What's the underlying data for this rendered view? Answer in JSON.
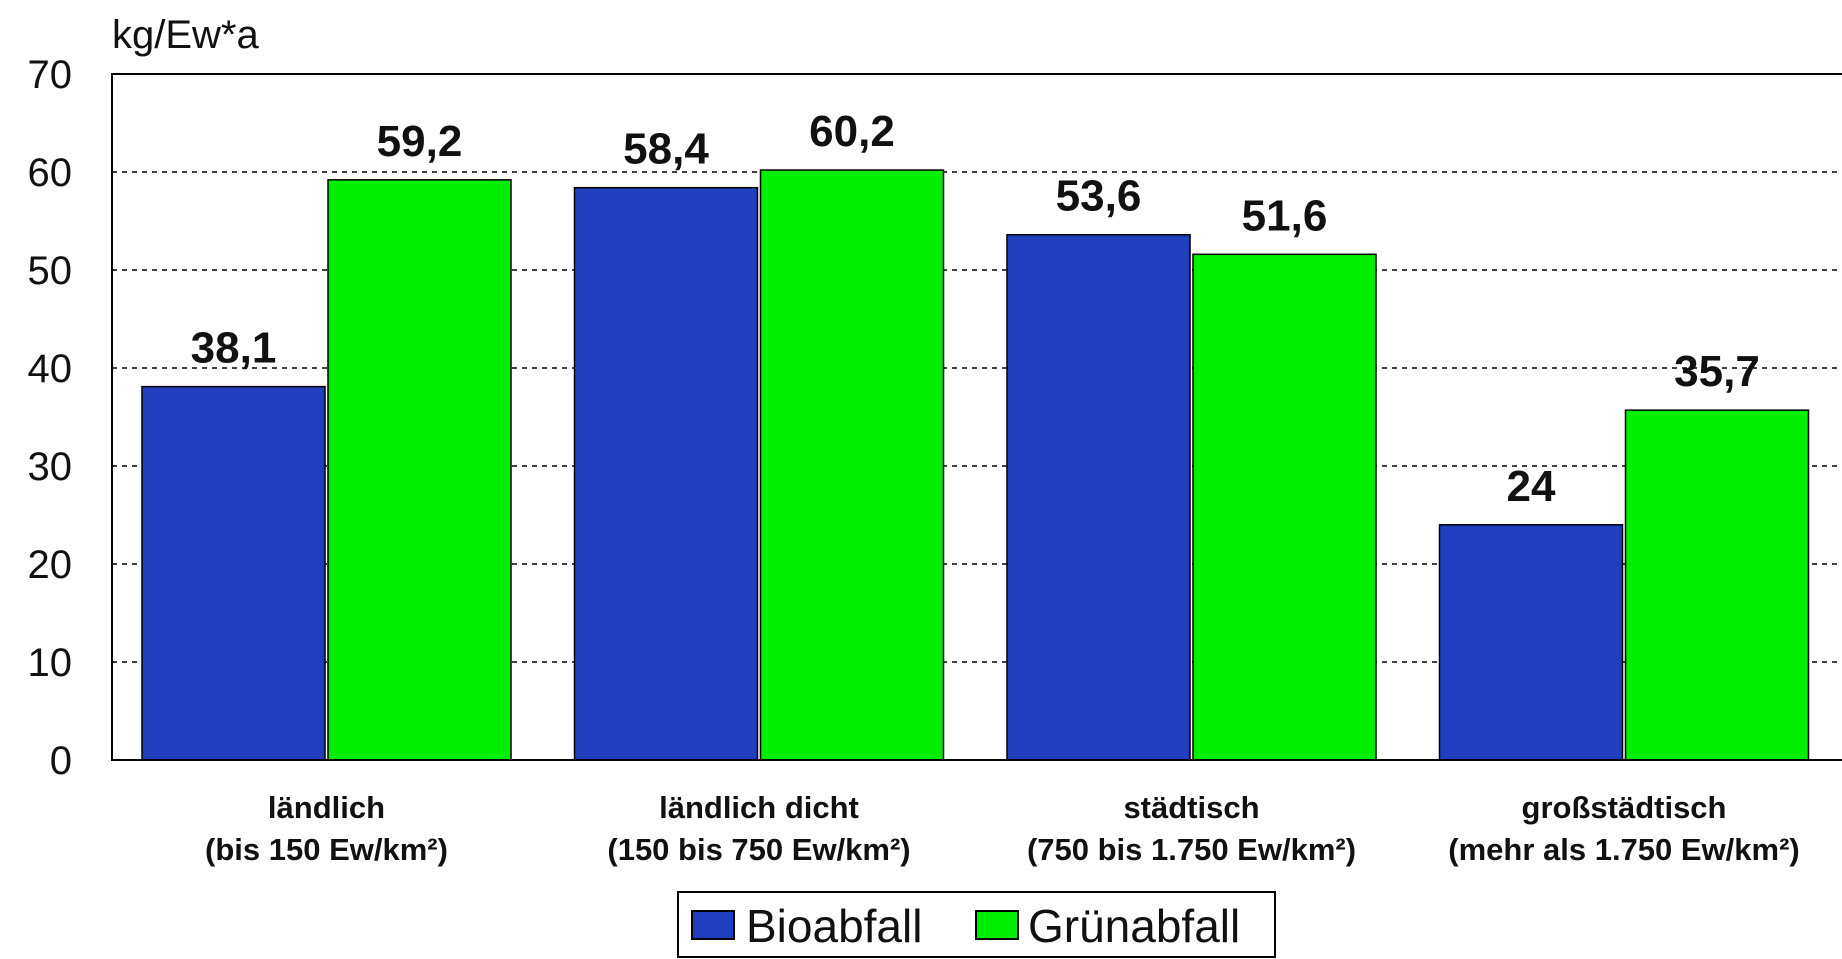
{
  "chart_data": {
    "type": "bar",
    "unit_label": "kg/Ew*a",
    "ylim": [
      0,
      70
    ],
    "yticks": [
      "0",
      "10",
      "20",
      "30",
      "40",
      "50",
      "60",
      "70"
    ],
    "grid": "horizontal dashed",
    "legend_position": "bottom-center",
    "categories": [
      [
        "ländlich",
        "(bis 150 Ew/km²)"
      ],
      [
        "ländlich dicht",
        "(150 bis 750 Ew/km²)"
      ],
      [
        "städtisch",
        "(750 bis 1.750 Ew/km²)"
      ],
      [
        "großstädtisch",
        "(mehr als 1.750 Ew/km²)"
      ]
    ],
    "series": [
      {
        "name": "Bioabfall",
        "color": "#1f3fbf",
        "values": [
          38.1,
          58.4,
          53.6,
          24
        ],
        "labels": [
          "38,1",
          "58,4",
          "53,6",
          "24"
        ]
      },
      {
        "name": "Grünabfall",
        "color": "#00ee00",
        "values": [
          59.2,
          60.2,
          51.6,
          35.7
        ],
        "labels": [
          "59,2",
          "60,2",
          "51,6",
          "35,7"
        ]
      }
    ]
  }
}
